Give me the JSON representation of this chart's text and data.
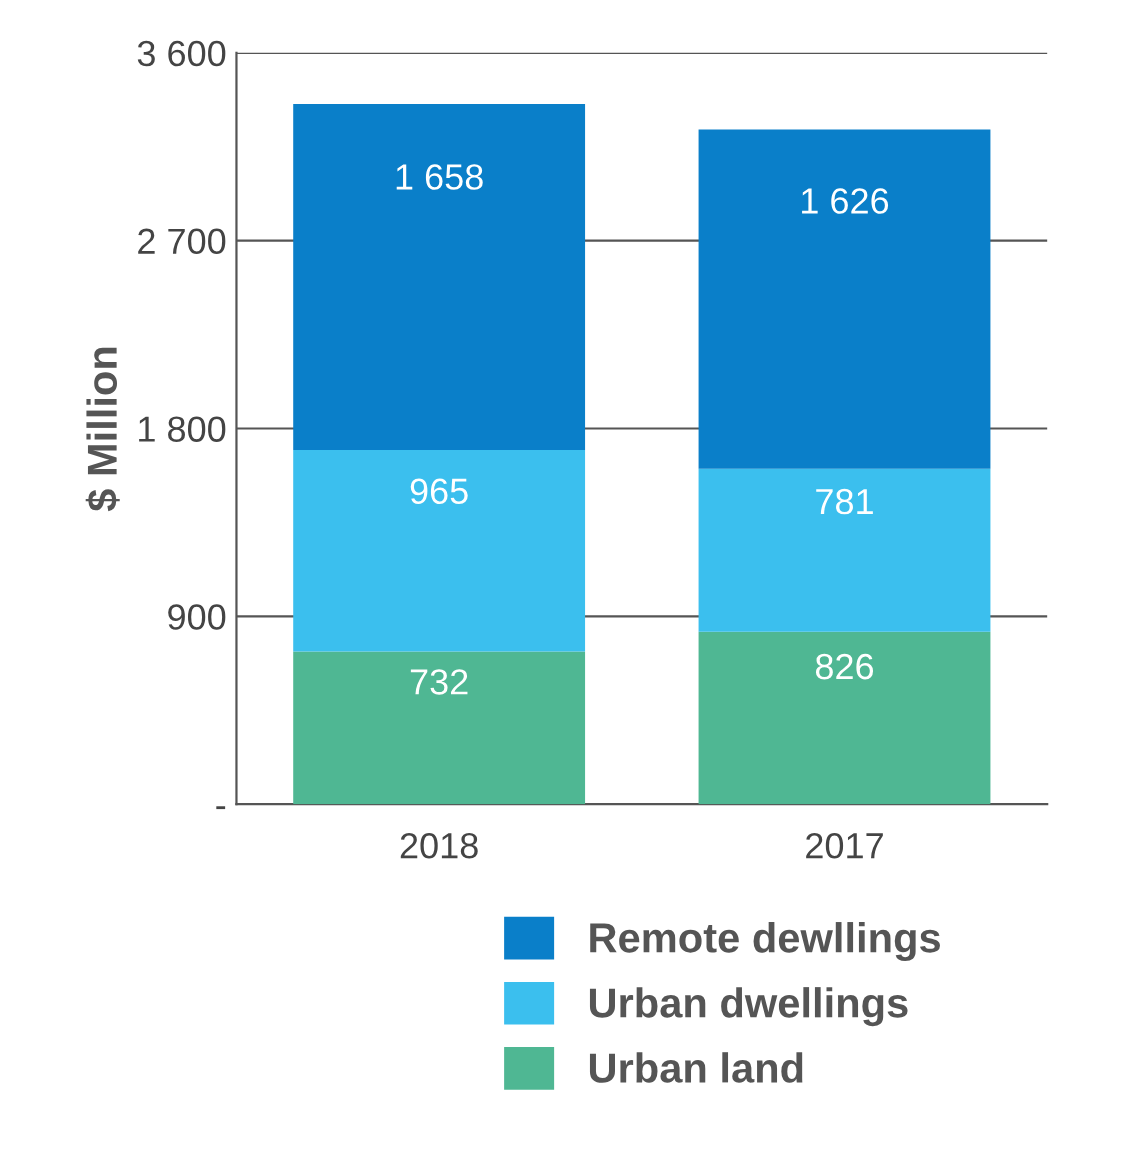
{
  "chart_data": {
    "type": "bar",
    "stacked": true,
    "ylabel": "$ Million",
    "categories": [
      "2018",
      "2017"
    ],
    "series": [
      {
        "name": "Urban land",
        "color": "#4fb793",
        "values": [
          732,
          826
        ],
        "value_labels": [
          "732",
          "826"
        ]
      },
      {
        "name": "Urban dwellings",
        "color": "#3bbfee",
        "values": [
          965,
          781
        ],
        "value_labels": [
          "965",
          "781"
        ]
      },
      {
        "name": "Remote dewllings",
        "color": "#0a7fc9",
        "values": [
          1658,
          1626
        ],
        "value_labels": [
          "1 658",
          "1 626"
        ]
      }
    ],
    "ylim": [
      0,
      3600
    ],
    "yticks": [
      {
        "value": 0,
        "label": "-"
      },
      900,
      {
        "value": 1800,
        "label": "1 800"
      },
      {
        "value": 2700,
        "label": "2 700"
      },
      {
        "value": 3600,
        "label": "3 600"
      }
    ],
    "grid": "y",
    "legend": "bottom"
  }
}
